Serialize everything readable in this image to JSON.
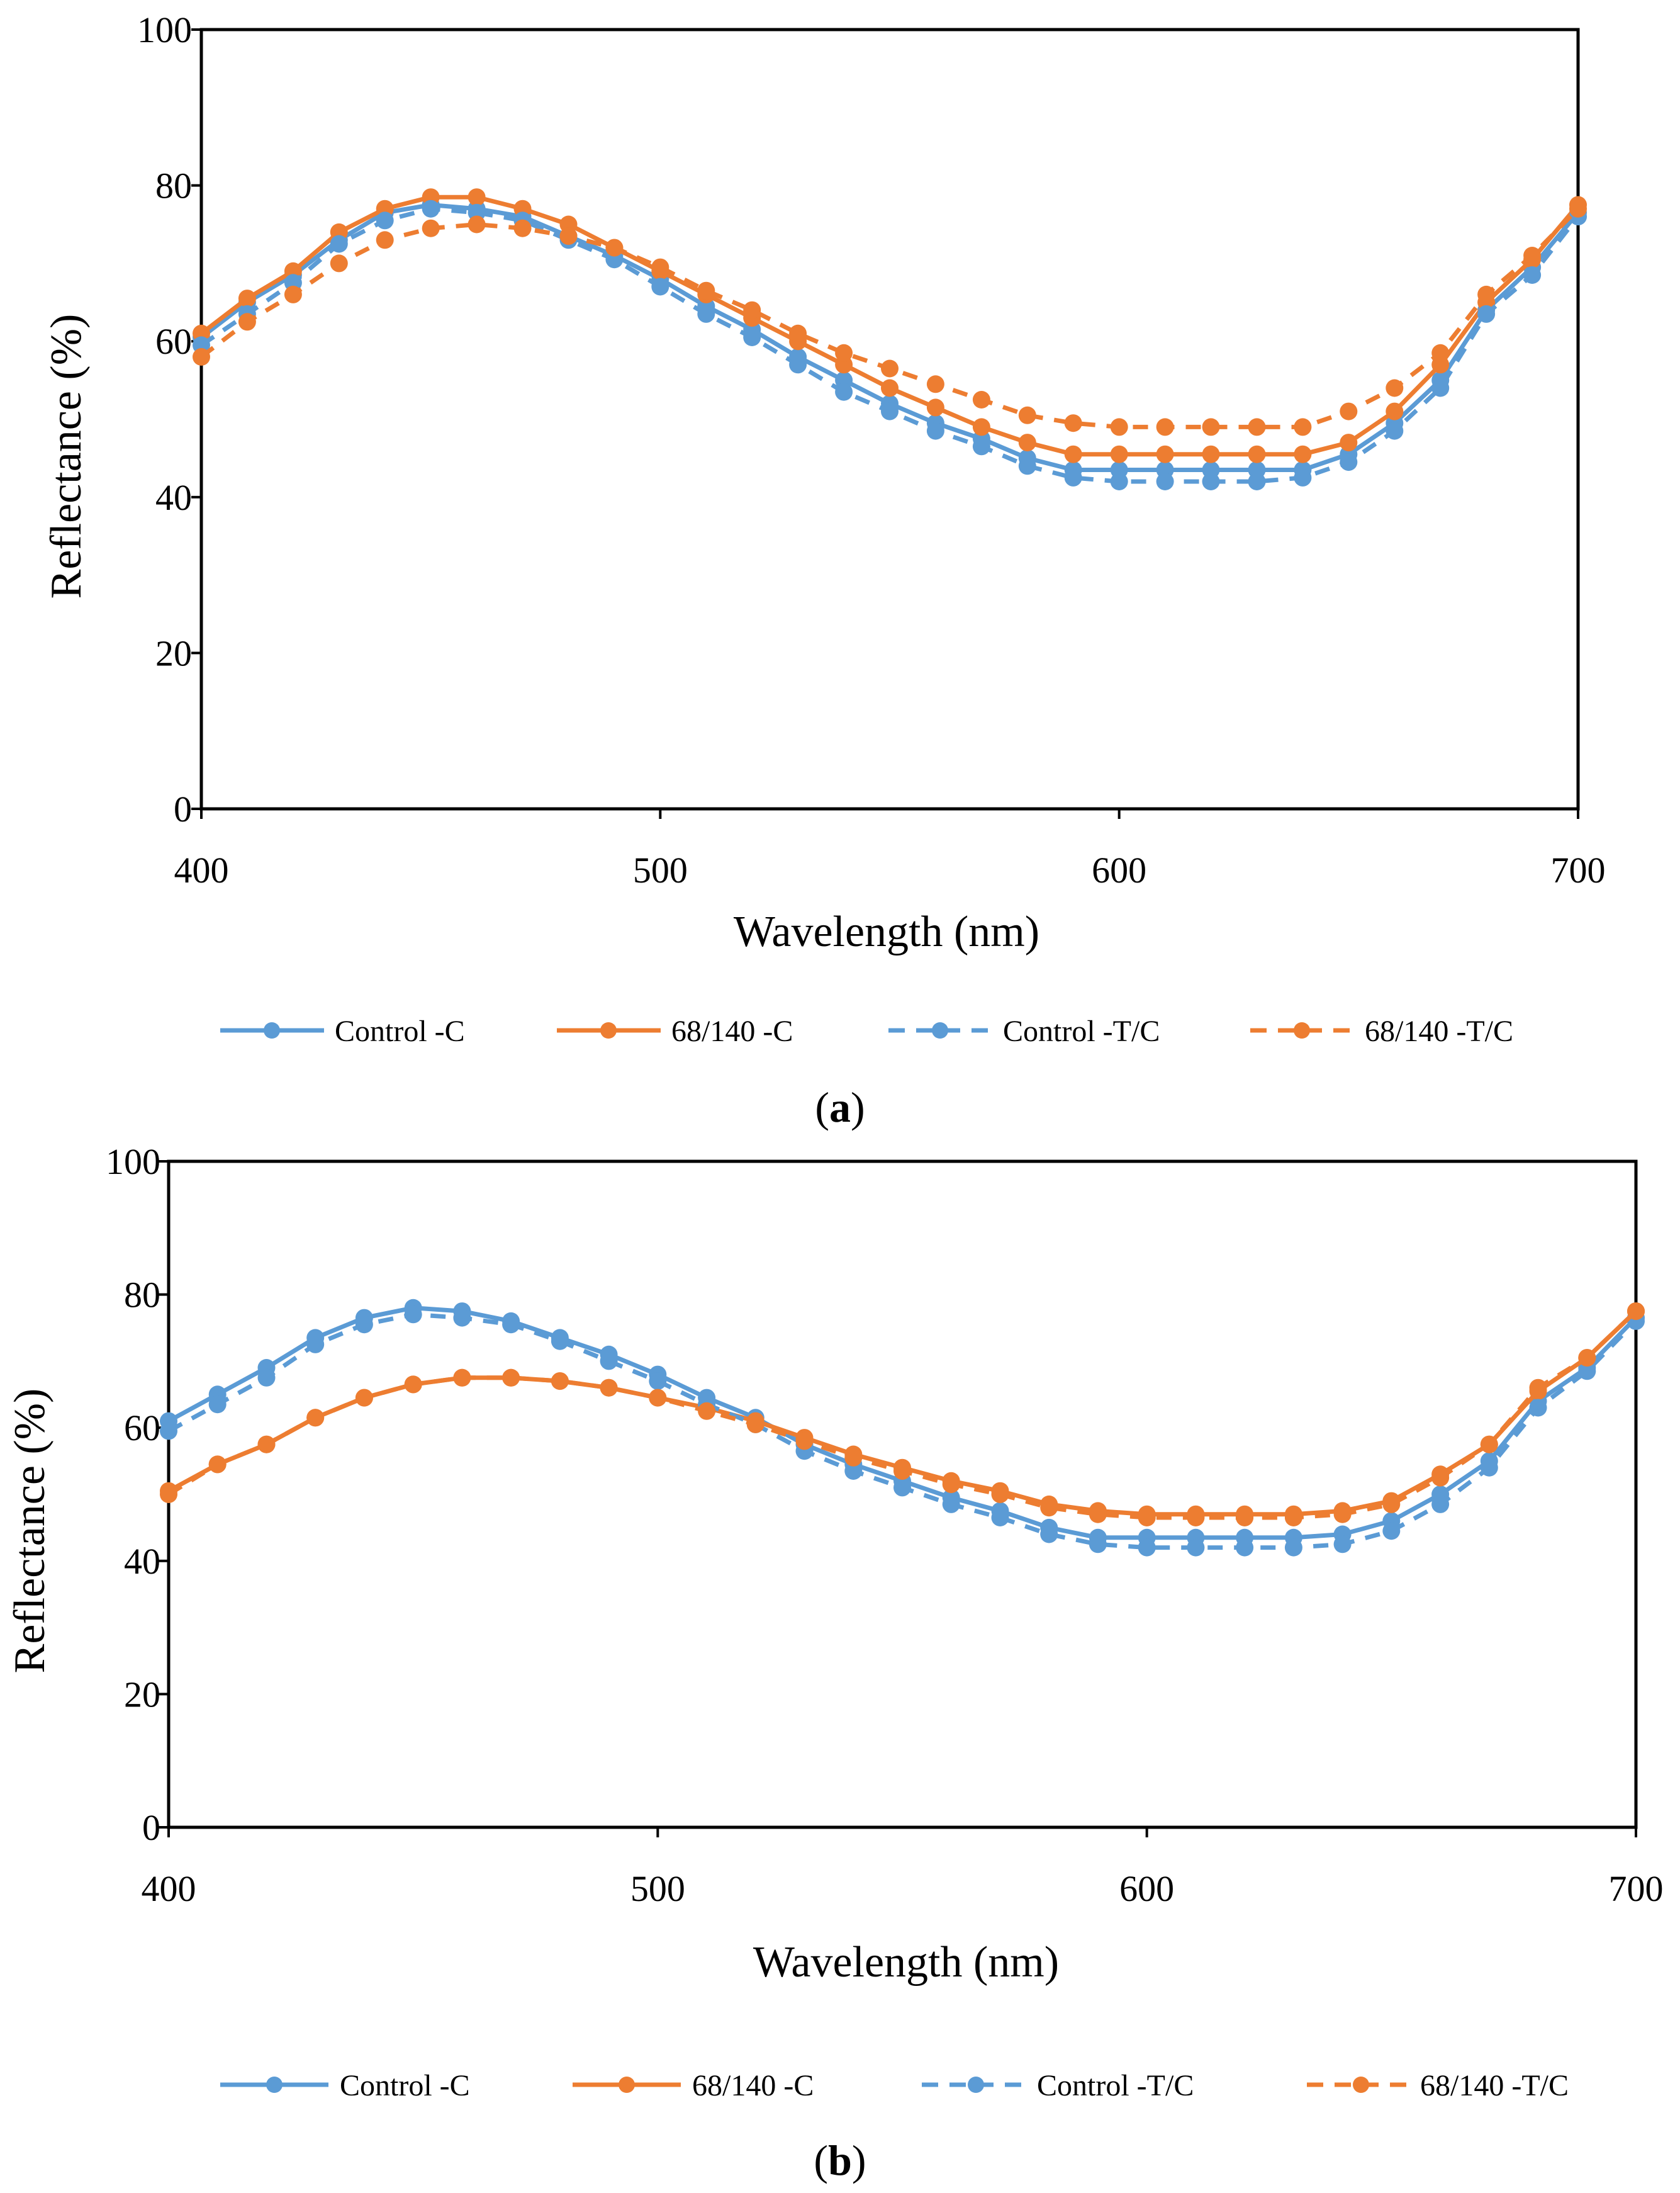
{
  "colors": {
    "blue": "#5B9BD5",
    "orange": "#ED7D31",
    "axis": "#000000",
    "background": "#ffffff"
  },
  "chart_data": [
    {
      "type": "line",
      "caption": {
        "open": "(",
        "letter": "a",
        "close": ")"
      },
      "xlabel": "Wavelength (nm)",
      "ylabel": "Reflectance (%)",
      "xlim": [
        400,
        700
      ],
      "ylim": [
        0,
        100
      ],
      "xticks": [
        "400",
        "500",
        "600",
        "700"
      ],
      "yticks": [
        "0",
        "20",
        "40",
        "60",
        "80",
        "100"
      ],
      "grid": false,
      "legend_position": "bottom",
      "x": [
        400,
        410,
        420,
        430,
        440,
        450,
        460,
        470,
        480,
        490,
        500,
        510,
        520,
        530,
        540,
        550,
        560,
        570,
        580,
        590,
        600,
        610,
        620,
        630,
        640,
        650,
        660,
        670,
        680,
        690,
        700
      ],
      "series": [
        {
          "name": "Control -C",
          "color": "blue",
          "dashed": false,
          "values": [
            60.5,
            65,
            68.5,
            73,
            76.5,
            77.5,
            77,
            76,
            73.5,
            71,
            68,
            64.5,
            61.5,
            58,
            55,
            52,
            49.5,
            47.5,
            45,
            43.5,
            43.5,
            43.5,
            43.5,
            43.5,
            43.5,
            45.5,
            49.5,
            55,
            64,
            69.5,
            76.5
          ]
        },
        {
          "name": "68/140 -C",
          "color": "orange",
          "dashed": false,
          "values": [
            61,
            65.5,
            69,
            74,
            77,
            78.5,
            78.5,
            77,
            75,
            72,
            69,
            66,
            63,
            60,
            57,
            54,
            51.5,
            49,
            47,
            45.5,
            45.5,
            45.5,
            45.5,
            45.5,
            45.5,
            47,
            51,
            57,
            65,
            70.5,
            77.5
          ]
        },
        {
          "name": "Control -T/C",
          "color": "blue",
          "dashed": true,
          "values": [
            59.5,
            63.5,
            67.5,
            72.5,
            75.5,
            77,
            76.5,
            75.5,
            73,
            70.5,
            67,
            63.5,
            60.5,
            57,
            53.5,
            51,
            48.5,
            46.5,
            44,
            42.5,
            42,
            42,
            42,
            42,
            42.5,
            44.5,
            48.5,
            54,
            63.5,
            68.5,
            76
          ]
        },
        {
          "name": "68/140 -T/C",
          "color": "orange",
          "dashed": true,
          "values": [
            58,
            62.5,
            66,
            70,
            73,
            74.5,
            75,
            74.5,
            73.5,
            72,
            69.5,
            66.5,
            64,
            61,
            58.5,
            56.5,
            54.5,
            52.5,
            50.5,
            49.5,
            49,
            49,
            49,
            49,
            49,
            51,
            54,
            58.5,
            66,
            71,
            77
          ]
        }
      ]
    },
    {
      "type": "line",
      "caption": {
        "open": "(",
        "letter": "b",
        "close": ")"
      },
      "xlabel": "Wavelength (nm)",
      "ylabel": "Reflectance (%)",
      "xlim": [
        400,
        700
      ],
      "ylim": [
        0,
        100
      ],
      "xticks": [
        "400",
        "500",
        "600",
        "700"
      ],
      "yticks": [
        "0",
        "20",
        "40",
        "60",
        "80",
        "100"
      ],
      "grid": false,
      "legend_position": "bottom",
      "x": [
        400,
        410,
        420,
        430,
        440,
        450,
        460,
        470,
        480,
        490,
        500,
        510,
        520,
        530,
        540,
        550,
        560,
        570,
        580,
        590,
        600,
        610,
        620,
        630,
        640,
        650,
        660,
        670,
        680,
        690,
        700
      ],
      "series": [
        {
          "name": "Control -C",
          "color": "blue",
          "dashed": false,
          "values": [
            61,
            65,
            69,
            73.5,
            76.5,
            78,
            77.5,
            76,
            73.5,
            71,
            68,
            64.5,
            61.5,
            57.5,
            54.5,
            52,
            49.5,
            47.5,
            45,
            43.5,
            43.5,
            43.5,
            43.5,
            43.5,
            44,
            46,
            50,
            55,
            64,
            69,
            76.5
          ]
        },
        {
          "name": "68/140 -C",
          "color": "orange",
          "dashed": false,
          "values": [
            50.5,
            54.5,
            57.5,
            61.5,
            64.5,
            66.5,
            67.5,
            67.5,
            67,
            66,
            64.5,
            63,
            61,
            58.5,
            56,
            54,
            52,
            50.5,
            48.5,
            47.5,
            47,
            47,
            47,
            47,
            47.5,
            49,
            53,
            57.5,
            65.5,
            70.5,
            77.5
          ]
        },
        {
          "name": "Control -T/C",
          "color": "blue",
          "dashed": true,
          "values": [
            59.5,
            63.5,
            67.5,
            72.5,
            75.5,
            77,
            76.5,
            75.5,
            73,
            70,
            67,
            63.5,
            60.5,
            56.5,
            53.5,
            51,
            48.5,
            46.5,
            44,
            42.5,
            42,
            42,
            42,
            42,
            42.5,
            44.5,
            48.5,
            54,
            63,
            68.5,
            76
          ]
        },
        {
          "name": "68/140 -T/C",
          "color": "orange",
          "dashed": true,
          "values": [
            50,
            54.5,
            57.5,
            61.5,
            64.5,
            66.5,
            67.5,
            67.5,
            67,
            66,
            64.5,
            62.5,
            60.5,
            58,
            55.5,
            53.5,
            51.5,
            50,
            48,
            47,
            46.5,
            46.5,
            46.5,
            46.5,
            47,
            48.5,
            52.5,
            57.5,
            66,
            70.5,
            77.5
          ]
        }
      ]
    }
  ]
}
